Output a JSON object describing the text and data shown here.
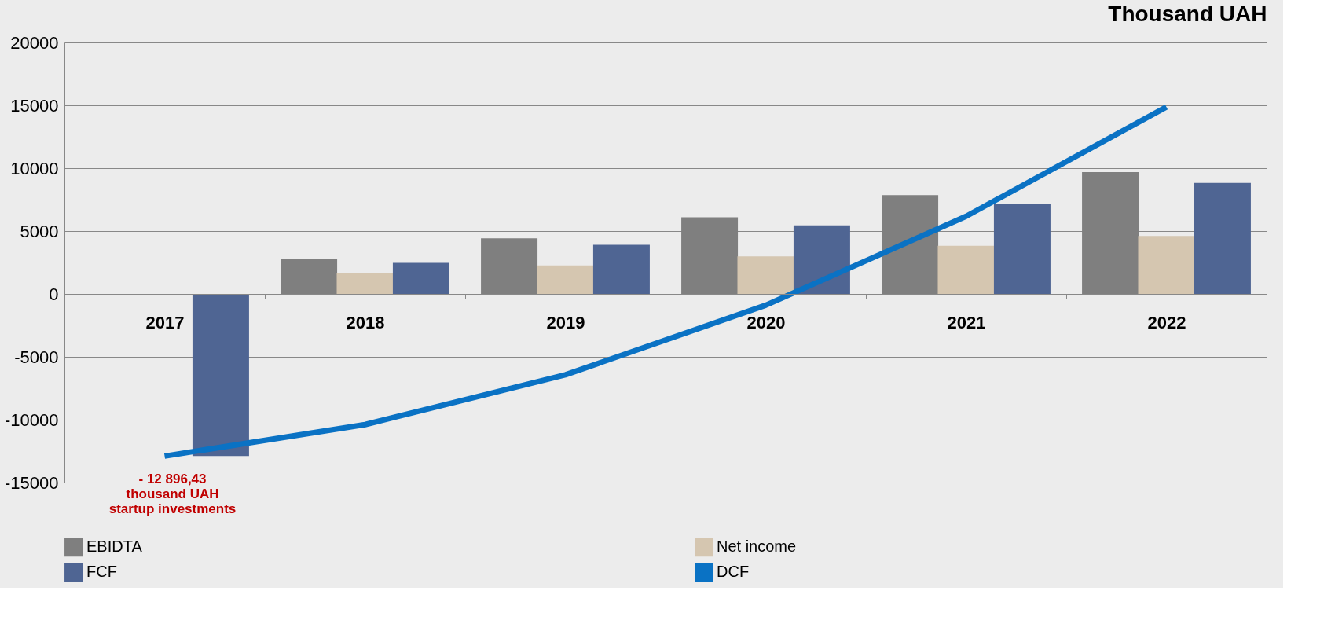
{
  "chart_data": {
    "type": "bar",
    "title": "Thousand UAH",
    "categories": [
      "2017",
      "2018",
      "2019",
      "2020",
      "2021",
      "2022"
    ],
    "series": [
      {
        "name": "EBIDTA",
        "color": "#7f7f7f",
        "values": [
          null,
          2800,
          4420,
          6100,
          7860,
          9680
        ]
      },
      {
        "name": "Net income",
        "color": "#d5c6b0",
        "values": [
          null,
          1620,
          2270,
          2990,
          3830,
          4610
        ]
      },
      {
        "name": "FCF",
        "color": "#4f6593",
        "values": [
          -12896.43,
          2470,
          3900,
          5450,
          7140,
          8830
        ]
      },
      {
        "name": "DCF",
        "color": "#0a72c4",
        "type": "line",
        "values": [
          -12896.43,
          -10390,
          -6430,
          -900,
          6170,
          14870
        ]
      }
    ],
    "ylim": [
      -15000,
      20000
    ],
    "yticks": [
      -15000,
      -10000,
      -5000,
      0,
      5000,
      10000,
      15000,
      20000
    ],
    "grid": "y",
    "legend": "bottom",
    "annotations": [
      {
        "text": "- 12 896,43\nthousand UAH\n startup investments",
        "x": "2017",
        "y": -12896.43
      }
    ]
  }
}
